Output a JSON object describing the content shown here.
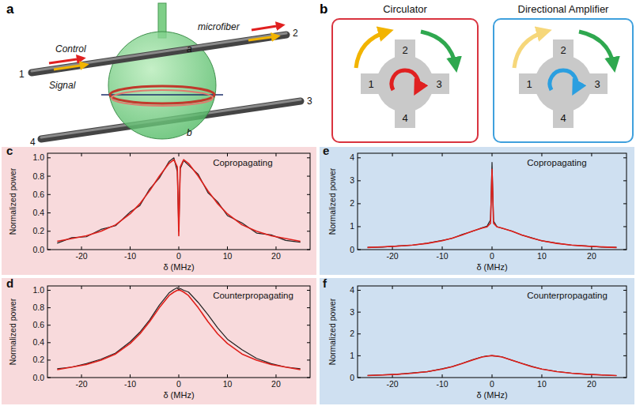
{
  "diagram_a": {
    "label": "a",
    "ports": [
      "1",
      "2",
      "3",
      "4"
    ],
    "control": "Control",
    "signal": "Signal",
    "fiber": "microfiber",
    "fiber_a": "a",
    "fiber_b": "b"
  },
  "diagram_b": {
    "label": "b",
    "panels": [
      {
        "title": "Circulator",
        "ports": [
          "1",
          "2",
          "3",
          "4"
        ]
      },
      {
        "title": "Directional Amplifier",
        "ports": [
          "1",
          "2",
          "3",
          "4"
        ]
      }
    ]
  },
  "chart_data": [
    {
      "type": "line",
      "panel_label": "c",
      "title": "Copropagating",
      "x_label": "δ (MHz)",
      "y_label": "Normalized power",
      "x": [
        -25,
        -22,
        -19,
        -16,
        -13,
        -10,
        -8,
        -6,
        -4,
        -2,
        -1,
        -0.3,
        0,
        0.3,
        1,
        2,
        4,
        6,
        8,
        10,
        13,
        16,
        19,
        22,
        25
      ],
      "series": [
        {
          "color": "#222222",
          "values": [
            0.07,
            0.13,
            0.14,
            0.22,
            0.26,
            0.41,
            0.48,
            0.66,
            0.78,
            0.96,
            1.0,
            0.85,
            0.2,
            0.88,
            0.97,
            0.92,
            0.82,
            0.62,
            0.52,
            0.37,
            0.29,
            0.18,
            0.16,
            0.1,
            0.08
          ]
        },
        {
          "color": "#e0201b",
          "values": [
            0.09,
            0.12,
            0.15,
            0.2,
            0.27,
            0.39,
            0.5,
            0.64,
            0.8,
            0.94,
            0.98,
            0.9,
            0.15,
            0.9,
            0.98,
            0.94,
            0.8,
            0.64,
            0.5,
            0.39,
            0.27,
            0.2,
            0.15,
            0.12,
            0.09
          ]
        }
      ],
      "xlim": [
        -27,
        27
      ],
      "xticks": [
        -20,
        -10,
        0,
        10,
        20
      ],
      "ylim": [
        0,
        1.05
      ],
      "yticks": [
        {
          "value": 0,
          "label": "0.0"
        },
        {
          "value": 0.2,
          "label": "0.2"
        },
        {
          "value": 0.4,
          "label": "0.4"
        },
        {
          "value": 0.6,
          "label": "0.6"
        },
        {
          "value": 0.8,
          "label": "0.8"
        },
        {
          "value": 1,
          "label": "1.0"
        }
      ],
      "grid": false
    },
    {
      "type": "line",
      "panel_label": "d",
      "title": "Counterpropagating",
      "x_label": "δ (MHz)",
      "y_label": "Normalized power",
      "x": [
        -25,
        -22,
        -19,
        -16,
        -13,
        -10,
        -8,
        -6,
        -4,
        -2,
        -1,
        -0.3,
        0,
        0.3,
        1,
        2,
        4,
        6,
        8,
        10,
        13,
        16,
        19,
        22,
        25
      ],
      "series": [
        {
          "color": "#222222",
          "values": [
            0.1,
            0.12,
            0.16,
            0.21,
            0.28,
            0.41,
            0.52,
            0.66,
            0.83,
            0.97,
            1.01,
            1.03,
            1.0,
            1.02,
            1.0,
            0.98,
            0.86,
            0.72,
            0.57,
            0.44,
            0.32,
            0.22,
            0.16,
            0.12,
            0.1
          ]
        },
        {
          "color": "#e0201b",
          "values": [
            0.09,
            0.12,
            0.15,
            0.2,
            0.27,
            0.39,
            0.5,
            0.64,
            0.8,
            0.94,
            0.98,
            1.0,
            1.0,
            1.0,
            0.98,
            0.94,
            0.8,
            0.64,
            0.5,
            0.39,
            0.27,
            0.2,
            0.15,
            0.12,
            0.09
          ]
        }
      ],
      "xlim": [
        -27,
        27
      ],
      "xticks": [
        -20,
        -10,
        0,
        10,
        20
      ],
      "ylim": [
        0,
        1.05
      ],
      "yticks": [
        {
          "value": 0,
          "label": "0.0"
        },
        {
          "value": 0.2,
          "label": "0.2"
        },
        {
          "value": 0.4,
          "label": "0.4"
        },
        {
          "value": 0.6,
          "label": "0.6"
        },
        {
          "value": 0.8,
          "label": "0.8"
        },
        {
          "value": 1,
          "label": "1.0"
        }
      ],
      "grid": false
    },
    {
      "type": "line",
      "panel_label": "e",
      "title": "Copropagating",
      "x_label": "δ (MHz)",
      "y_label": "Normalized power",
      "x": [
        -25,
        -22,
        -19,
        -16,
        -13,
        -10,
        -8,
        -6,
        -4,
        -2,
        -1,
        -0.3,
        0,
        0.3,
        1,
        2,
        4,
        6,
        8,
        10,
        13,
        16,
        19,
        22,
        25
      ],
      "series": [
        {
          "color": "#222222",
          "values": [
            0.1,
            0.11,
            0.16,
            0.19,
            0.28,
            0.4,
            0.49,
            0.66,
            0.79,
            0.95,
            1.02,
            1.3,
            3.8,
            1.25,
            1.0,
            0.93,
            0.81,
            0.63,
            0.51,
            0.38,
            0.28,
            0.19,
            0.16,
            0.11,
            0.1
          ]
        },
        {
          "color": "#e0201b",
          "values": [
            0.09,
            0.12,
            0.15,
            0.2,
            0.27,
            0.39,
            0.5,
            0.64,
            0.8,
            0.94,
            0.99,
            1.15,
            3.5,
            1.15,
            0.99,
            0.94,
            0.8,
            0.64,
            0.5,
            0.39,
            0.27,
            0.2,
            0.15,
            0.12,
            0.09
          ]
        }
      ],
      "xlim": [
        -27,
        27
      ],
      "xticks": [
        -20,
        -10,
        0,
        10,
        20
      ],
      "ylim": [
        0,
        4.2
      ],
      "yticks": [
        0,
        1,
        2,
        3,
        4
      ],
      "grid": false
    },
    {
      "type": "line",
      "panel_label": "f",
      "title": "Counterpropagating",
      "x_label": "δ (MHz)",
      "y_label": "Normalized power",
      "x": [
        -25,
        -22,
        -19,
        -16,
        -13,
        -10,
        -8,
        -6,
        -4,
        -2,
        -1,
        -0.3,
        0,
        0.3,
        1,
        2,
        4,
        6,
        8,
        10,
        13,
        16,
        19,
        22,
        25
      ],
      "series": [
        {
          "color": "#222222",
          "values": [
            0.1,
            0.12,
            0.15,
            0.21,
            0.27,
            0.4,
            0.5,
            0.65,
            0.81,
            0.95,
            0.99,
            1.0,
            1.01,
            0.99,
            0.98,
            0.95,
            0.79,
            0.65,
            0.51,
            0.39,
            0.28,
            0.2,
            0.15,
            0.12,
            0.09
          ]
        },
        {
          "color": "#e0201b",
          "values": [
            0.09,
            0.12,
            0.15,
            0.2,
            0.27,
            0.39,
            0.5,
            0.64,
            0.8,
            0.94,
            0.98,
            1.0,
            1.0,
            1.0,
            0.98,
            0.94,
            0.8,
            0.64,
            0.5,
            0.39,
            0.27,
            0.2,
            0.15,
            0.12,
            0.09
          ]
        }
      ],
      "xlim": [
        -27,
        27
      ],
      "xticks": [
        -20,
        -10,
        0,
        10,
        20
      ],
      "ylim": [
        0,
        4.2
      ],
      "yticks": [
        0,
        1,
        2,
        3,
        4
      ],
      "grid": false
    }
  ]
}
